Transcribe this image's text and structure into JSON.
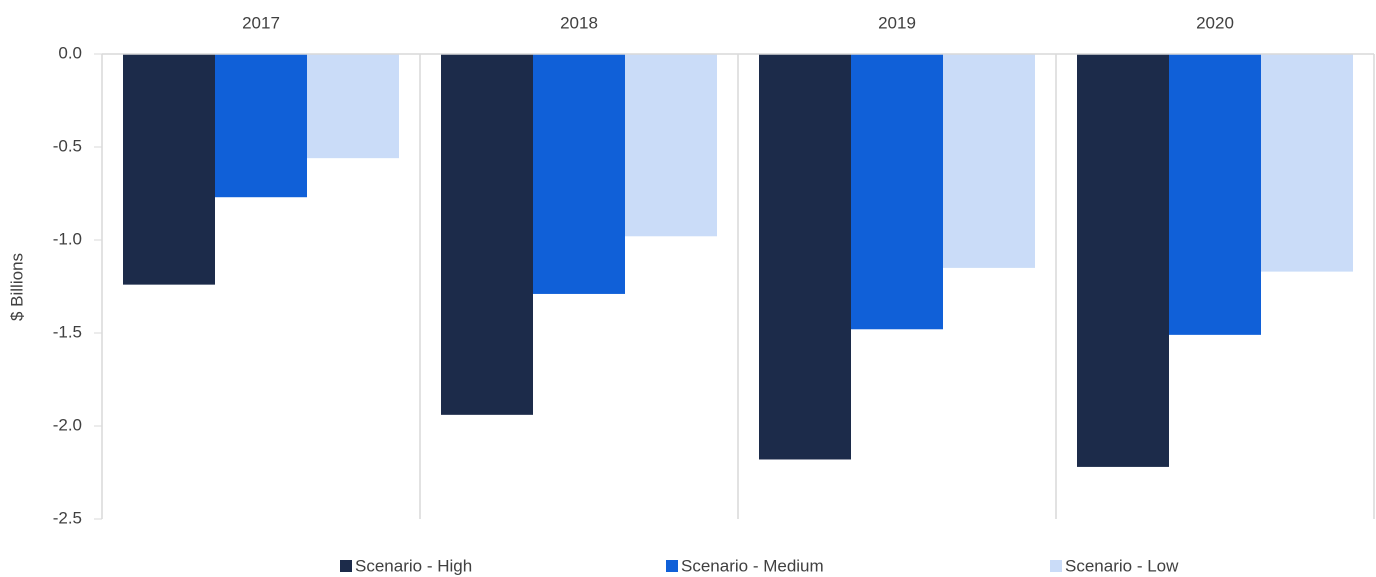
{
  "chart_data": {
    "type": "bar",
    "y_label": "$ Billions",
    "categories": [
      "2017",
      "2018",
      "2019",
      "2020"
    ],
    "series": [
      {
        "name": "Scenario - High",
        "color": "#1c2b4a",
        "values": [
          -1.24,
          -1.94,
          -2.18,
          -2.22
        ]
      },
      {
        "name": "Scenario - Medium",
        "color": "#1060d8",
        "values": [
          -0.77,
          -1.29,
          -1.48,
          -1.51
        ]
      },
      {
        "name": "Scenario - Low",
        "color": "#cadcf8",
        "values": [
          -0.56,
          -0.98,
          -1.15,
          -1.17
        ]
      }
    ],
    "ylim": [
      -2.5,
      0
    ],
    "yticks": [
      {
        "value": 0,
        "label": "0.0"
      },
      -0.5,
      {
        "value": -1,
        "label": "-1.0"
      },
      -1.5,
      {
        "value": -2,
        "label": "-2.0"
      },
      -2.5
    ],
    "grid": false,
    "legend": "bottom"
  }
}
